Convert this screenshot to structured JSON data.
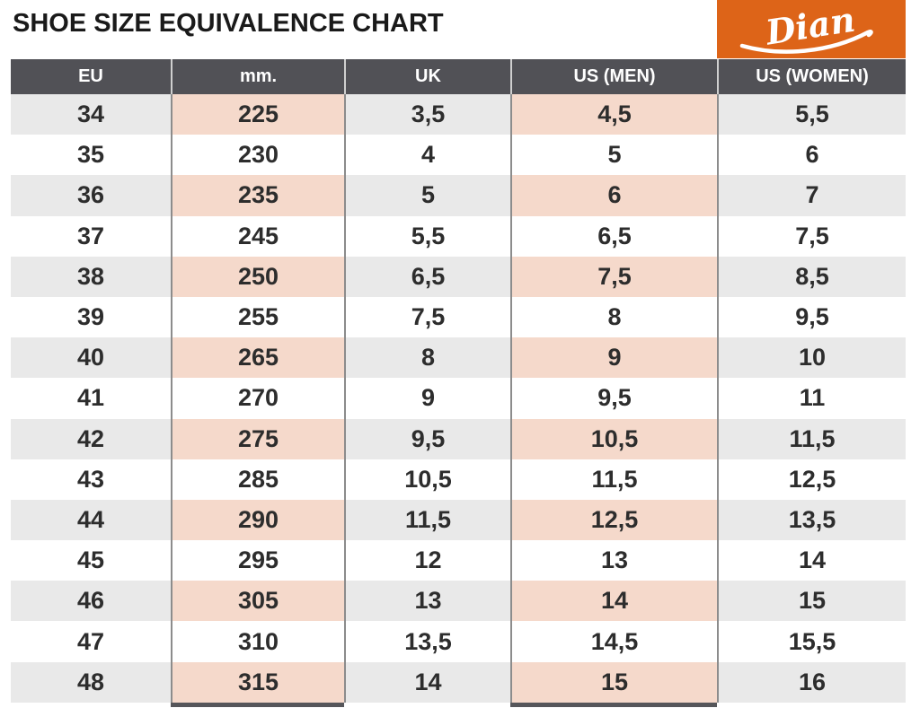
{
  "title": "SHOE SIZE EQUIVALENCE CHART",
  "logo": {
    "brand": "Dian"
  },
  "colors": {
    "brand_orange": "#dd6418",
    "header_bg": "#515156",
    "row_shade_gray": "#e9e9e9",
    "highlight_pink": "#f5d9cb",
    "separator": "#8c8c8c",
    "text": "#2d2d2d"
  },
  "chart_data": {
    "type": "table",
    "title": "SHOE SIZE EQUIVALENCE CHART",
    "columns": [
      "EU",
      "mm.",
      "UK",
      "US (MEN)",
      "US (WOMEN)"
    ],
    "highlighted_columns": [
      "mm.",
      "US (MEN)"
    ],
    "rows": [
      [
        "34",
        "225",
        "3,5",
        "4,5",
        "5,5"
      ],
      [
        "35",
        "230",
        "4",
        "5",
        "6"
      ],
      [
        "36",
        "235",
        "5",
        "6",
        "7"
      ],
      [
        "37",
        "245",
        "5,5",
        "6,5",
        "7,5"
      ],
      [
        "38",
        "250",
        "6,5",
        "7,5",
        "8,5"
      ],
      [
        "39",
        "255",
        "7,5",
        "8",
        "9,5"
      ],
      [
        "40",
        "265",
        "8",
        "9",
        "10"
      ],
      [
        "41",
        "270",
        "9",
        "9,5",
        "11"
      ],
      [
        "42",
        "275",
        "9,5",
        "10,5",
        "11,5"
      ],
      [
        "43",
        "285",
        "10,5",
        "11,5",
        "12,5"
      ],
      [
        "44",
        "290",
        "11,5",
        "12,5",
        "13,5"
      ],
      [
        "45",
        "295",
        "12",
        "13",
        "14"
      ],
      [
        "46",
        "305",
        "13",
        "14",
        "15"
      ],
      [
        "47",
        "310",
        "13,5",
        "14,5",
        "15,5"
      ],
      [
        "48",
        "315",
        "14",
        "15",
        "16"
      ]
    ]
  }
}
